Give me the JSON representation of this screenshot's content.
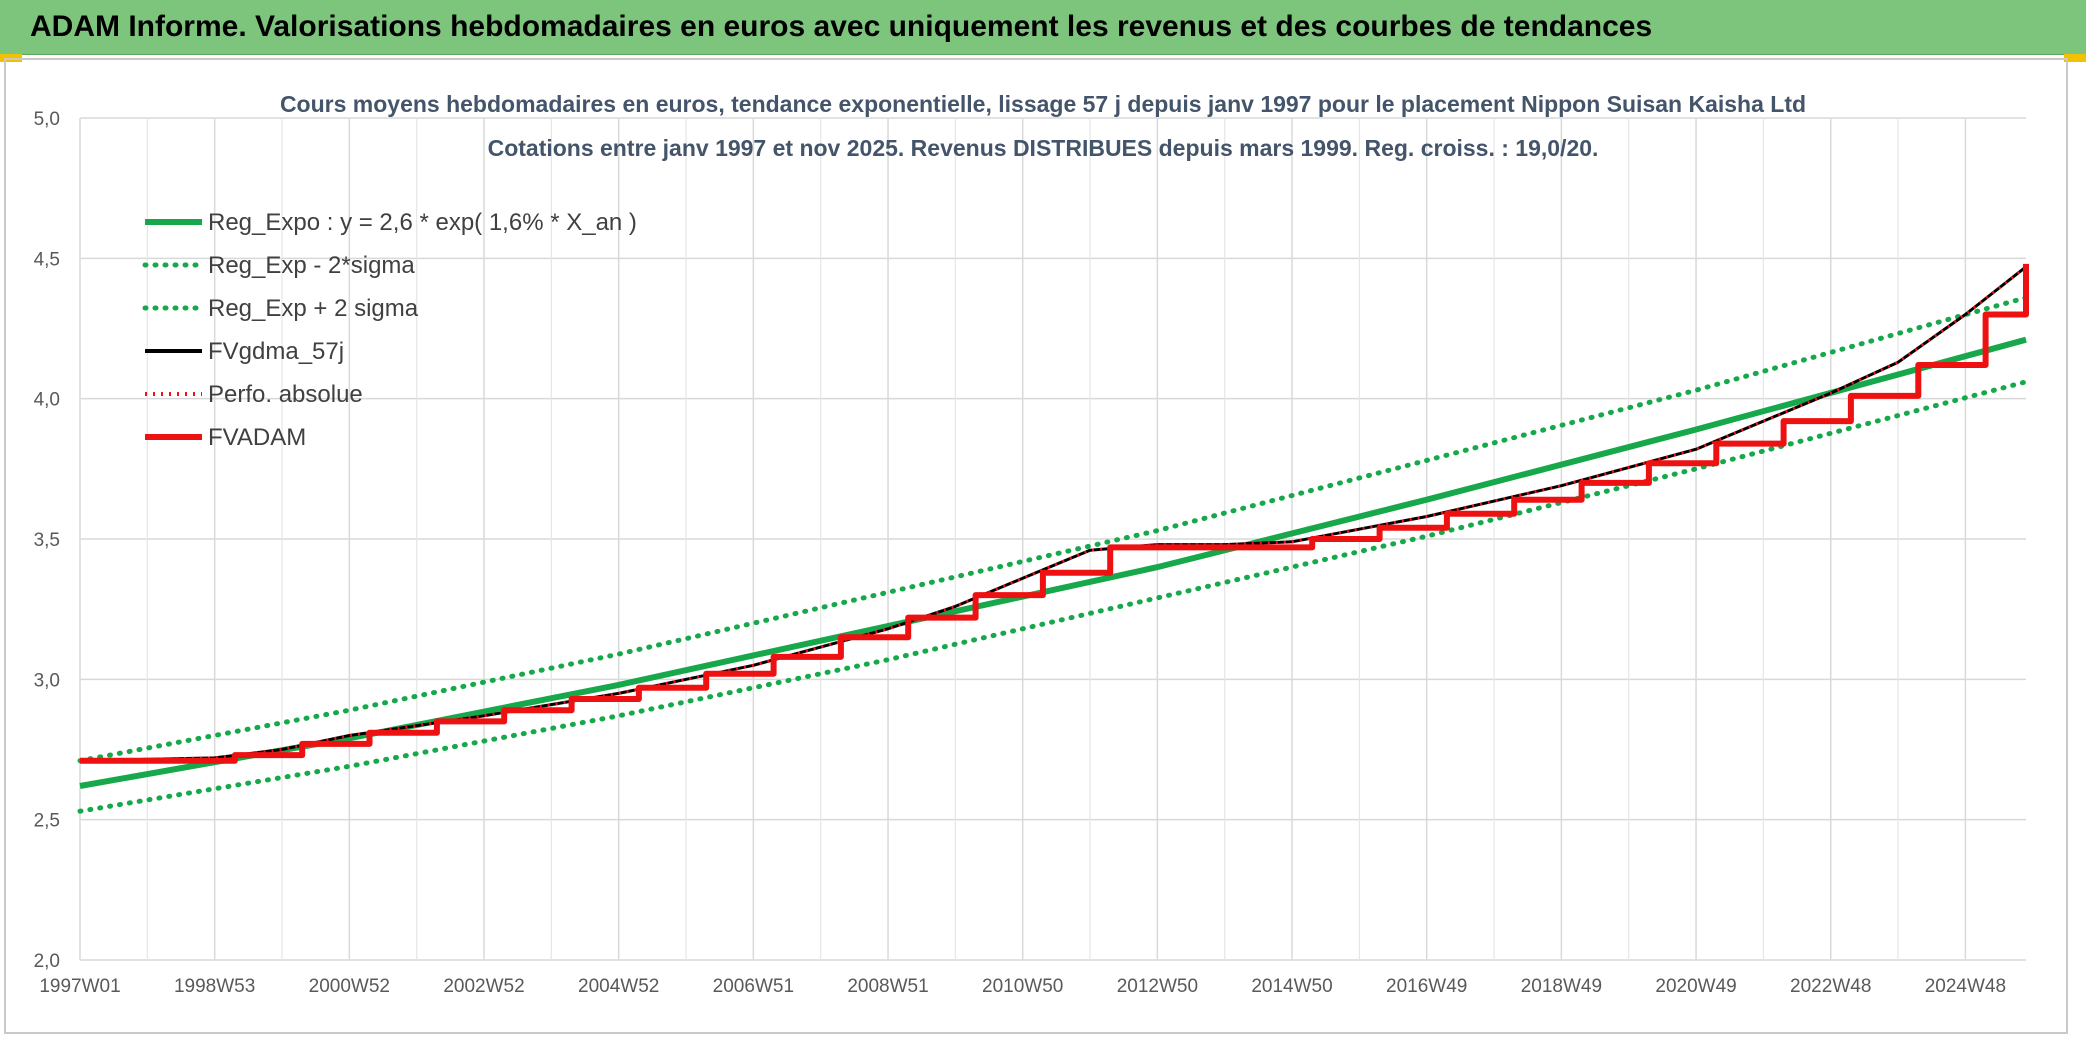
{
  "header": {
    "title": "ADAM Informe. Valorisations hebdomadaires en euros avec uniquement les revenus et des courbes de tendances"
  },
  "colors": {
    "header_bg": "#7dc57d",
    "reg": "#16a84a",
    "fv": "#000000",
    "adam": "#ee1111",
    "perfo": "#ee1111"
  },
  "chart_data": {
    "type": "line",
    "title": "Cours moyens hebdomadaires en euros, tendance exponentielle, lissage 57 j depuis janv 1997 pour le placement Nippon Suisan Kaisha Ltd",
    "subtitle": "Cotations entre janv 1997 et nov 2025. Revenus DISTRIBUES depuis mars 1999. Reg. croiss. : 19,0/20.",
    "ylim": [
      2.0,
      5.0
    ],
    "yticks": [
      "2,0",
      "2,5",
      "3,0",
      "3,5",
      "4,0",
      "4,5",
      "5,0"
    ],
    "yticks_values": [
      2.0,
      2.5,
      3.0,
      3.5,
      4.0,
      4.5,
      5.0
    ],
    "xlim": [
      1997.0,
      2025.9
    ],
    "xticks": [
      "1997W01",
      "1998W53",
      "2000W52",
      "2002W52",
      "2004W52",
      "2006W51",
      "2008W51",
      "2010W50",
      "2012W50",
      "2014W50",
      "2016W49",
      "2018W49",
      "2020W49",
      "2022W48",
      "2024W48"
    ],
    "xticks_values": [
      1997.0,
      1999.0,
      2001.0,
      2003.0,
      2005.0,
      2007.0,
      2009.0,
      2011.0,
      2013.0,
      2015.0,
      2017.0,
      2019.0,
      2021.0,
      2023.0,
      2025.0
    ],
    "grid": true,
    "legend_position": "top-left",
    "series": [
      {
        "name": "Reg_Expo : y = 2,6 * exp( 1,6% *  X_an )",
        "style": "solid-green",
        "x": [
          1997.0,
          2001.0,
          2005.0,
          2009.0,
          2013.0,
          2017.0,
          2021.0,
          2025.9
        ],
        "y": [
          2.62,
          2.79,
          2.98,
          3.19,
          3.4,
          3.64,
          3.89,
          4.21
        ]
      },
      {
        "name": "Reg_Exp - 2*sigma",
        "style": "dotted-green",
        "x": [
          1997.0,
          2001.0,
          2005.0,
          2009.0,
          2013.0,
          2017.0,
          2021.0,
          2025.9
        ],
        "y": [
          2.53,
          2.69,
          2.87,
          3.07,
          3.29,
          3.51,
          3.75,
          4.06
        ]
      },
      {
        "name": "Reg_Exp + 2 sigma",
        "style": "dotted-green",
        "x": [
          1997.0,
          2001.0,
          2005.0,
          2009.0,
          2013.0,
          2017.0,
          2021.0,
          2025.9
        ],
        "y": [
          2.71,
          2.89,
          3.09,
          3.31,
          3.53,
          3.78,
          4.03,
          4.36
        ]
      },
      {
        "name": "FVgdma_57j",
        "style": "solid-black",
        "x": [
          1997.0,
          1999.0,
          2000.0,
          2001.0,
          2003.0,
          2005.0,
          2007.0,
          2009.0,
          2010.0,
          2011.0,
          2012.0,
          2013.0,
          2014.0,
          2015.0,
          2017.0,
          2019.0,
          2021.0,
          2023.0,
          2024.0,
          2025.0,
          2025.9
        ],
        "y": [
          2.71,
          2.72,
          2.75,
          2.8,
          2.87,
          2.95,
          3.05,
          3.18,
          3.26,
          3.36,
          3.46,
          3.48,
          3.48,
          3.49,
          3.58,
          3.69,
          3.82,
          4.02,
          4.13,
          4.3,
          4.47
        ]
      },
      {
        "name": "Perfo. absolue",
        "style": "dotted-red",
        "x": [
          1997.0,
          1999.0,
          2000.0,
          2001.0,
          2003.0,
          2005.0,
          2007.0,
          2009.0,
          2010.0,
          2011.0,
          2012.0,
          2013.0,
          2014.0,
          2015.0,
          2017.0,
          2019.0,
          2021.0,
          2023.0,
          2024.0,
          2025.0,
          2025.9
        ],
        "y": [
          2.71,
          2.72,
          2.75,
          2.8,
          2.87,
          2.95,
          3.05,
          3.18,
          3.26,
          3.36,
          3.46,
          3.48,
          3.48,
          3.49,
          3.58,
          3.69,
          3.82,
          4.02,
          4.13,
          4.3,
          4.47
        ]
      },
      {
        "name": "FVADAM",
        "style": "step-red",
        "x": [
          1997.0,
          1999.0,
          1999.3,
          2000.3,
          2001.3,
          2002.3,
          2003.3,
          2004.3,
          2005.3,
          2006.3,
          2007.3,
          2008.3,
          2009.3,
          2010.3,
          2011.3,
          2012.3,
          2014.3,
          2015.3,
          2016.3,
          2017.3,
          2018.3,
          2019.3,
          2020.3,
          2021.3,
          2022.3,
          2023.3,
          2024.3,
          2025.3,
          2025.9
        ],
        "y": [
          2.71,
          2.71,
          2.73,
          2.77,
          2.81,
          2.85,
          2.89,
          2.93,
          2.97,
          3.02,
          3.08,
          3.15,
          3.22,
          3.3,
          3.38,
          3.47,
          3.47,
          3.5,
          3.54,
          3.59,
          3.64,
          3.7,
          3.77,
          3.84,
          3.92,
          4.01,
          4.12,
          4.3,
          4.48
        ]
      }
    ]
  }
}
